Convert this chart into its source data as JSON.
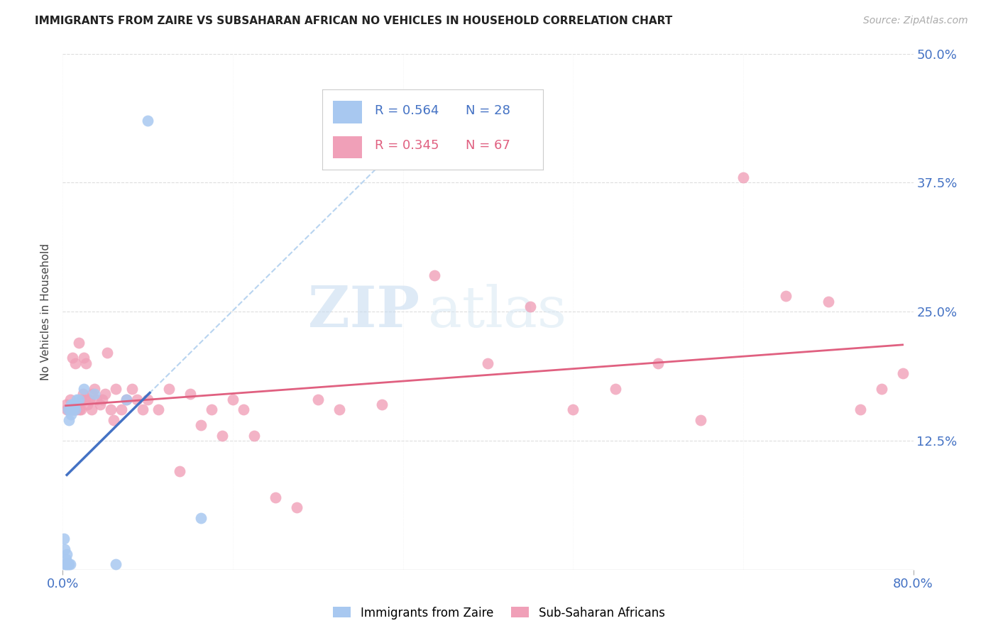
{
  "title": "IMMIGRANTS FROM ZAIRE VS SUBSAHARAN AFRICAN NO VEHICLES IN HOUSEHOLD CORRELATION CHART",
  "source": "Source: ZipAtlas.com",
  "ylabel": "No Vehicles in Household",
  "yticks": [
    0.0,
    0.125,
    0.25,
    0.375,
    0.5
  ],
  "ytick_labels": [
    "",
    "12.5%",
    "25.0%",
    "37.5%",
    "50.0%"
  ],
  "xlim": [
    0.0,
    0.8
  ],
  "ylim": [
    0.0,
    0.5
  ],
  "color_zaire": "#a8c8f0",
  "color_zaire_line": "#4472c4",
  "color_zaire_dashed": "#b8d4f0",
  "color_africa": "#f0a0b8",
  "color_africa_line": "#e06080",
  "color_blue_text": "#4472c4",
  "color_pink_text": "#e06080",
  "watermark_zip": "ZIP",
  "watermark_atlas": "atlas",
  "zaire_x": [
    0.001,
    0.002,
    0.002,
    0.003,
    0.003,
    0.004,
    0.004,
    0.005,
    0.005,
    0.006,
    0.006,
    0.007,
    0.007,
    0.008,
    0.008,
    0.009,
    0.01,
    0.01,
    0.011,
    0.012,
    0.013,
    0.015,
    0.02,
    0.03,
    0.05,
    0.06,
    0.08,
    0.13
  ],
  "zaire_y": [
    0.03,
    0.02,
    0.005,
    0.005,
    0.01,
    0.005,
    0.015,
    0.005,
    0.155,
    0.005,
    0.145,
    0.005,
    0.155,
    0.15,
    0.16,
    0.155,
    0.155,
    0.16,
    0.16,
    0.155,
    0.165,
    0.165,
    0.175,
    0.17,
    0.005,
    0.165,
    0.435,
    0.05
  ],
  "africa_x": [
    0.003,
    0.004,
    0.005,
    0.006,
    0.007,
    0.008,
    0.009,
    0.01,
    0.011,
    0.012,
    0.013,
    0.014,
    0.015,
    0.016,
    0.017,
    0.018,
    0.019,
    0.02,
    0.021,
    0.022,
    0.023,
    0.025,
    0.027,
    0.028,
    0.03,
    0.032,
    0.035,
    0.037,
    0.04,
    0.042,
    0.045,
    0.048,
    0.05,
    0.055,
    0.06,
    0.065,
    0.07,
    0.075,
    0.08,
    0.09,
    0.1,
    0.11,
    0.12,
    0.13,
    0.14,
    0.15,
    0.16,
    0.17,
    0.18,
    0.2,
    0.22,
    0.24,
    0.26,
    0.3,
    0.35,
    0.4,
    0.44,
    0.48,
    0.52,
    0.56,
    0.6,
    0.64,
    0.68,
    0.72,
    0.75,
    0.77,
    0.79
  ],
  "africa_y": [
    0.16,
    0.155,
    0.155,
    0.155,
    0.165,
    0.155,
    0.205,
    0.155,
    0.155,
    0.2,
    0.155,
    0.16,
    0.22,
    0.155,
    0.155,
    0.165,
    0.17,
    0.205,
    0.165,
    0.2,
    0.16,
    0.165,
    0.155,
    0.17,
    0.175,
    0.165,
    0.16,
    0.165,
    0.17,
    0.21,
    0.155,
    0.145,
    0.175,
    0.155,
    0.165,
    0.175,
    0.165,
    0.155,
    0.165,
    0.155,
    0.175,
    0.095,
    0.17,
    0.14,
    0.155,
    0.13,
    0.165,
    0.155,
    0.13,
    0.07,
    0.06,
    0.165,
    0.155,
    0.16,
    0.285,
    0.2,
    0.255,
    0.155,
    0.175,
    0.2,
    0.145,
    0.38,
    0.265,
    0.26,
    0.155,
    0.175,
    0.19
  ]
}
